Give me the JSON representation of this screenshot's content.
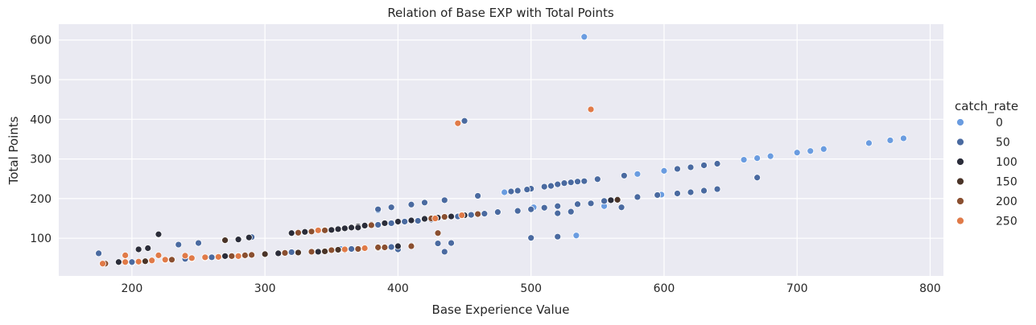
{
  "chart_data": {
    "type": "scatter",
    "title": "Relation of Base EXP with Total Points",
    "xlabel": "Base Experience Value",
    "ylabel": "Total Points",
    "xlim": [
      145,
      810
    ],
    "ylim": [
      5,
      640
    ],
    "xticks": [
      "200",
      "300",
      "400",
      "500",
      "600",
      "700",
      "800"
    ],
    "yticks": [
      "100",
      "200",
      "300",
      "400",
      "500",
      "600"
    ],
    "grid": true,
    "background": "#eaeaf2",
    "legend": {
      "title": "catch_rate",
      "placement": "right",
      "entries": [
        {
          "label": "0",
          "color": "#6a9ce0"
        },
        {
          "label": "50",
          "color": "#4a6aa0"
        },
        {
          "label": "100",
          "color": "#2b2d3a"
        },
        {
          "label": "150",
          "color": "#4a3428"
        },
        {
          "label": "200",
          "color": "#8a4f30"
        },
        {
          "label": "250",
          "color": "#e07a48"
        }
      ]
    },
    "series": [
      {
        "name": "0",
        "color": "#6a9ce0",
        "points": [
          [
            540,
            608
          ],
          [
            580,
            262
          ],
          [
            600,
            270
          ],
          [
            660,
            298
          ],
          [
            670,
            302
          ],
          [
            680,
            307
          ],
          [
            700,
            316
          ],
          [
            710,
            320
          ],
          [
            720,
            325
          ],
          [
            754,
            340
          ],
          [
            770,
            347
          ],
          [
            780,
            352
          ],
          [
            534,
            107
          ],
          [
            480,
            216
          ],
          [
            502,
            178
          ],
          [
            357,
            73
          ],
          [
            385,
            170
          ],
          [
            200,
            38
          ],
          [
            445,
            156
          ],
          [
            555,
            181
          ],
          [
            598,
            210
          ]
        ]
      },
      {
        "name": "50",
        "color": "#4a6aa0",
        "points": [
          [
            175,
            62
          ],
          [
            235,
            84
          ],
          [
            250,
            88
          ],
          [
            290,
            103
          ],
          [
            450,
            396
          ],
          [
            385,
            173
          ],
          [
            395,
            178
          ],
          [
            410,
            185
          ],
          [
            420,
            190
          ],
          [
            435,
            196
          ],
          [
            460,
            207
          ],
          [
            490,
            220
          ],
          [
            500,
            225
          ],
          [
            510,
            230
          ],
          [
            520,
            236
          ],
          [
            530,
            241
          ],
          [
            540,
            244
          ],
          [
            550,
            249
          ],
          [
            570,
            258
          ],
          [
            610,
            275
          ],
          [
            620,
            279
          ],
          [
            630,
            284
          ],
          [
            640,
            288
          ],
          [
            670,
            253
          ],
          [
            640,
            224
          ],
          [
            630,
            220
          ],
          [
            620,
            216
          ],
          [
            610,
            213
          ],
          [
            595,
            209
          ],
          [
            580,
            204
          ],
          [
            565,
            199
          ],
          [
            555,
            194
          ],
          [
            545,
            188
          ],
          [
            535,
            186
          ],
          [
            520,
            181
          ],
          [
            510,
            177
          ],
          [
            500,
            173
          ],
          [
            490,
            169
          ],
          [
            475,
            166
          ],
          [
            465,
            162
          ],
          [
            455,
            159
          ],
          [
            445,
            155
          ],
          [
            435,
            152
          ],
          [
            425,
            147
          ],
          [
            415,
            144
          ],
          [
            405,
            142
          ],
          [
            395,
            138
          ],
          [
            385,
            134
          ],
          [
            375,
            131
          ],
          [
            365,
            128
          ],
          [
            355,
            125
          ],
          [
            345,
            121
          ],
          [
            330,
            115
          ],
          [
            320,
            112
          ],
          [
            500,
            101
          ],
          [
            520,
            104
          ],
          [
            568,
            178
          ],
          [
            430,
            87
          ],
          [
            440,
            88
          ],
          [
            435,
            66
          ],
          [
            400,
            72
          ],
          [
            395,
            78
          ],
          [
            385,
            76
          ],
          [
            365,
            73
          ],
          [
            355,
            71
          ],
          [
            340,
            68
          ],
          [
            320,
            65
          ],
          [
            300,
            60
          ],
          [
            280,
            56
          ],
          [
            260,
            52
          ],
          [
            240,
            48
          ],
          [
            225,
            45
          ],
          [
            210,
            42
          ],
          [
            200,
            40
          ],
          [
            410,
            82
          ],
          [
            520,
            163
          ],
          [
            530,
            167
          ],
          [
            485,
            218
          ],
          [
            497,
            223
          ],
          [
            515,
            232
          ],
          [
            525,
            239
          ],
          [
            535,
            243
          ]
        ]
      },
      {
        "name": "100",
        "color": "#2b2d3a",
        "points": [
          [
            190,
            40
          ],
          [
            205,
            72
          ],
          [
            212,
            75
          ],
          [
            220,
            110
          ],
          [
            280,
            97
          ],
          [
            288,
            102
          ],
          [
            225,
            45
          ],
          [
            350,
            121
          ],
          [
            355,
            123
          ],
          [
            360,
            125
          ],
          [
            365,
            127
          ],
          [
            370,
            130
          ],
          [
            375,
            132
          ],
          [
            380,
            135
          ],
          [
            390,
            138
          ],
          [
            400,
            142
          ],
          [
            410,
            145
          ],
          [
            420,
            149
          ],
          [
            430,
            152
          ],
          [
            440,
            155
          ],
          [
            450,
            158
          ],
          [
            400,
            80
          ],
          [
            360,
            70
          ],
          [
            340,
            66
          ],
          [
            310,
            62
          ],
          [
            270,
            55
          ],
          [
            320,
            113
          ],
          [
            370,
            127
          ],
          [
            330,
            116
          ],
          [
            560,
            196
          ]
        ]
      },
      {
        "name": "150",
        "color": "#4a3428",
        "points": [
          [
            210,
            42
          ],
          [
            245,
            49
          ],
          [
            270,
            95
          ],
          [
            300,
            60
          ],
          [
            325,
            64
          ],
          [
            345,
            67
          ],
          [
            385,
            75
          ],
          [
            565,
            197
          ],
          [
            355,
            71
          ]
        ]
      },
      {
        "name": "200",
        "color": "#8a4f30",
        "points": [
          [
            180,
            36
          ],
          [
            230,
            46
          ],
          [
            255,
            51
          ],
          [
            275,
            55
          ],
          [
            285,
            57
          ],
          [
            290,
            58
          ],
          [
            315,
            63
          ],
          [
            335,
            66
          ],
          [
            350,
            70
          ],
          [
            370,
            73
          ],
          [
            385,
            77
          ],
          [
            390,
            77
          ],
          [
            430,
            113
          ],
          [
            325,
            114
          ],
          [
            335,
            117
          ],
          [
            345,
            120
          ],
          [
            380,
            133
          ],
          [
            410,
            80
          ],
          [
            425,
            150
          ],
          [
            435,
            154
          ],
          [
            460,
            161
          ]
        ]
      },
      {
        "name": "250",
        "color": "#e07a48",
        "points": [
          [
            178,
            36
          ],
          [
            195,
            57
          ],
          [
            205,
            41
          ],
          [
            215,
            44
          ],
          [
            220,
            57
          ],
          [
            240,
            56
          ],
          [
            255,
            52
          ],
          [
            265,
            53
          ],
          [
            280,
            55
          ],
          [
            340,
            120
          ],
          [
            445,
            390
          ],
          [
            545,
            425
          ],
          [
            360,
            72
          ],
          [
            375,
            75
          ],
          [
            428,
            150
          ],
          [
            448,
            158
          ],
          [
            245,
            50
          ],
          [
            195,
            40
          ],
          [
            225,
            46
          ]
        ]
      }
    ]
  }
}
